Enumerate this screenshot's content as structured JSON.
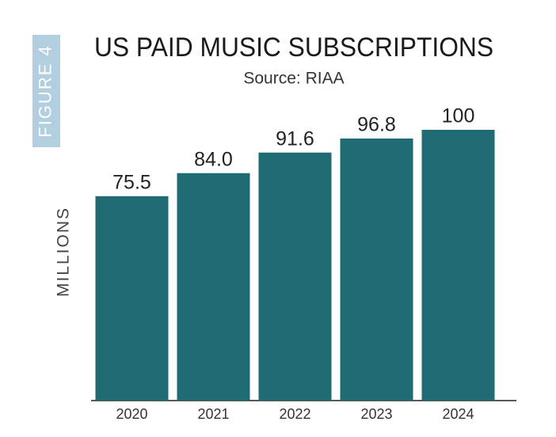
{
  "chart_data": {
    "type": "bar",
    "figure": "FIGURE 4",
    "title": "US PAID MUSIC SUBSCRIPTIONS",
    "subtitle": "Source: RIAA",
    "ylabel": "MILLIONS",
    "categories": [
      "2020",
      "2021",
      "2022",
      "2023",
      "2024"
    ],
    "values": [
      75.5,
      84.0,
      91.6,
      96.8,
      100
    ],
    "value_labels": [
      "75.5",
      "84.0",
      "91.6",
      "96.8",
      "100"
    ],
    "color": "#1e6b74"
  }
}
